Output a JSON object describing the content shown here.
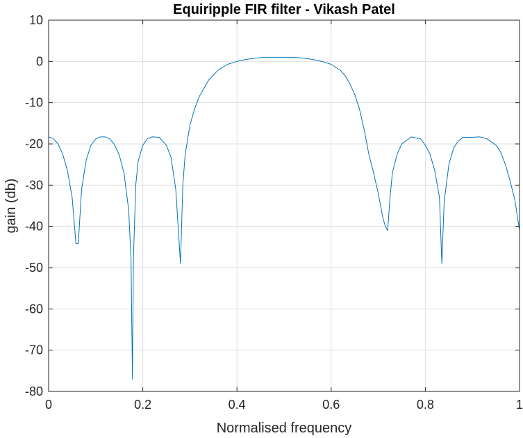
{
  "chart_data": {
    "type": "line",
    "title": "Equiripple FIR filter - Vikash Patel",
    "xlabel": "Normalised frequency",
    "ylabel": "gain (db)",
    "xlim": [
      0,
      1
    ],
    "ylim": [
      -80,
      10
    ],
    "grid": true,
    "xticks": [
      "0",
      "0.2",
      "0.4",
      "0.6",
      "0.8",
      "1"
    ],
    "yticks": [
      "10",
      "0",
      "-10",
      "-20",
      "-30",
      "-40",
      "-50",
      "-60",
      "-70",
      "-80"
    ],
    "series": [
      {
        "color": "#0072BD",
        "x": [
          0,
          0.01,
          0.02,
          0.03,
          0.04,
          0.05,
          0.058,
          0.063,
          0.07,
          0.08,
          0.09,
          0.1,
          0.11,
          0.12,
          0.13,
          0.14,
          0.15,
          0.16,
          0.17,
          0.175,
          0.178,
          0.18,
          0.185,
          0.19,
          0.2,
          0.21,
          0.22,
          0.235,
          0.25,
          0.26,
          0.27,
          0.275,
          0.28,
          0.285,
          0.29,
          0.3,
          0.31,
          0.32,
          0.34,
          0.36,
          0.38,
          0.4,
          0.42,
          0.44,
          0.46,
          0.48,
          0.5,
          0.52,
          0.54,
          0.56,
          0.58,
          0.6,
          0.62,
          0.63,
          0.64,
          0.65,
          0.66,
          0.67,
          0.68,
          0.69,
          0.7,
          0.71,
          0.715,
          0.72,
          0.725,
          0.73,
          0.74,
          0.75,
          0.77,
          0.79,
          0.8,
          0.81,
          0.82,
          0.83,
          0.835,
          0.84,
          0.85,
          0.86,
          0.87,
          0.88,
          0.9,
          0.915,
          0.93,
          0.95,
          0.96,
          0.97,
          0.98,
          0.99,
          1.0
        ],
        "y": [
          -18.3,
          -18.7,
          -20.0,
          -22.5,
          -26.5,
          -33,
          -44.2,
          -44.2,
          -31,
          -23.8,
          -20.3,
          -18.8,
          -18.3,
          -18.3,
          -18.8,
          -20.2,
          -22.7,
          -27,
          -36,
          -48,
          -77,
          -48,
          -30,
          -24.3,
          -20.3,
          -18.7,
          -18.3,
          -18.4,
          -20.3,
          -23.3,
          -31,
          -40,
          -49,
          -30,
          -22.5,
          -15.5,
          -11.5,
          -8.5,
          -4.5,
          -2.1,
          -0.7,
          0,
          0.5,
          0.8,
          1.0,
          1.0,
          1.0,
          1.0,
          0.8,
          0.5,
          0,
          -0.7,
          -2.2,
          -3.5,
          -5.5,
          -8,
          -11.5,
          -16.5,
          -22.5,
          -27,
          -32,
          -38,
          -40,
          -41,
          -33,
          -27,
          -22.5,
          -20,
          -18.3,
          -18.8,
          -20.3,
          -22.5,
          -26.5,
          -33,
          -49,
          -34,
          -25,
          -21,
          -19.3,
          -18.4,
          -18.4,
          -18.3,
          -18.7,
          -20.3,
          -22,
          -25,
          -29,
          -33.5,
          -41
        ]
      }
    ]
  }
}
